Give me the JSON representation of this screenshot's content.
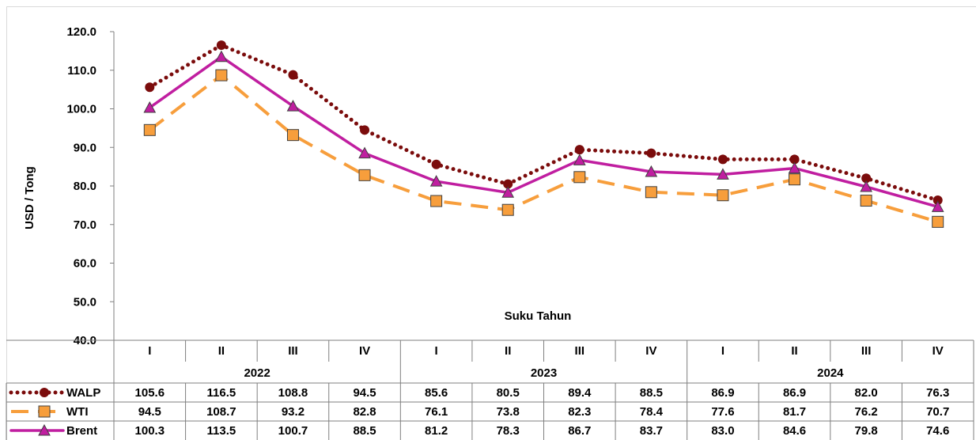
{
  "chart_data": {
    "type": "line",
    "ylabel": "USD / Tong",
    "xlabel": "Suku Tahun",
    "ylim": [
      40,
      120
    ],
    "yticks": [
      "40.0",
      "50.0",
      "60.0",
      "70.0",
      "80.0",
      "90.0",
      "100.0",
      "110.0",
      "120.0"
    ],
    "quarters": [
      "I",
      "II",
      "III",
      "IV",
      "I",
      "II",
      "III",
      "IV",
      "I",
      "II",
      "III",
      "IV"
    ],
    "years": [
      "2022",
      "2023",
      "2024"
    ],
    "series": [
      {
        "name": "WALP",
        "color": "#7b0c0c",
        "marker": "circle",
        "line": "dotted",
        "values": [
          "105.6",
          "116.5",
          "108.8",
          "94.5",
          "85.6",
          "80.5",
          "89.4",
          "88.5",
          "86.9",
          "86.9",
          "82.0",
          "76.3"
        ]
      },
      {
        "name": "WTI",
        "color": "#f79e3c",
        "marker": "square",
        "line": "dashed",
        "values": [
          "94.5",
          "108.7",
          "93.2",
          "82.8",
          "76.1",
          "73.8",
          "82.3",
          "78.4",
          "77.6",
          "81.7",
          "76.2",
          "70.7"
        ]
      },
      {
        "name": "Brent",
        "color": "#c01ea0",
        "marker": "triangle",
        "line": "solid",
        "values": [
          "100.3",
          "113.5",
          "100.7",
          "88.5",
          "81.2",
          "78.3",
          "86.7",
          "83.7",
          "83.0",
          "84.6",
          "79.8",
          "74.6"
        ]
      }
    ],
    "grid": false,
    "legend": "data-table"
  }
}
